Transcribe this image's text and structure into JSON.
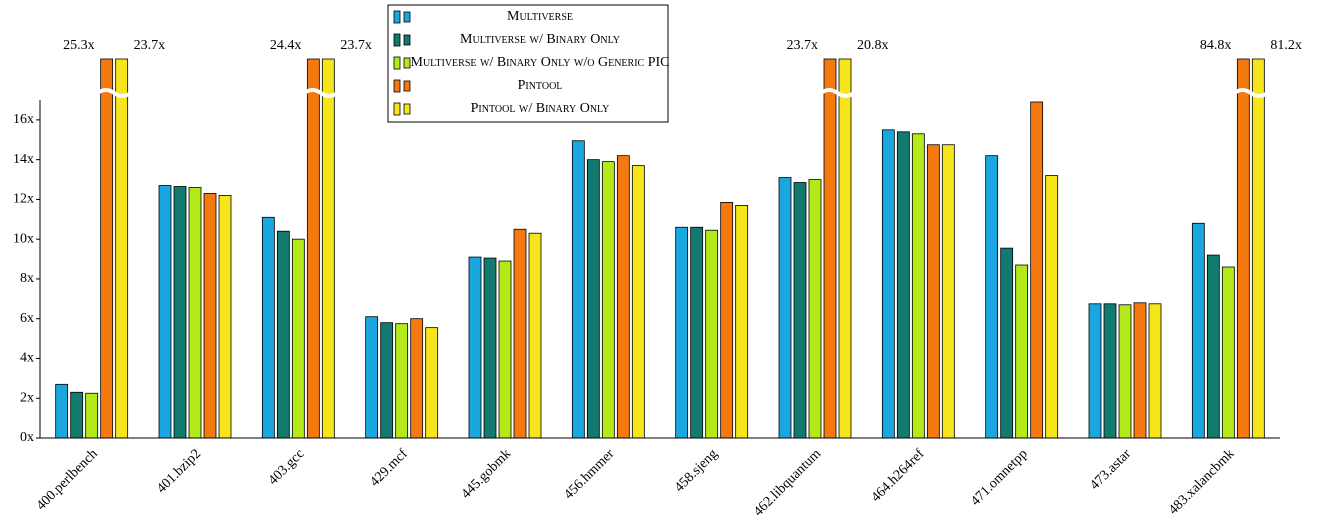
{
  "chart_data": {
    "type": "bar",
    "categories": [
      "400.perlbench",
      "401.bzip2",
      "403.gcc",
      "429.mcf",
      "445.gobmk",
      "456.hmmer",
      "458.sjeng",
      "462.libquantum",
      "464.h264ref",
      "471.omnetpp",
      "473.astar",
      "483.xalancbmk"
    ],
    "series": [
      {
        "name": "Multiverse",
        "color": "#1aa7e0",
        "values": [
          2.7,
          12.7,
          11.1,
          6.1,
          9.1,
          14.95,
          10.6,
          13.1,
          15.5,
          14.2,
          6.75,
          10.8
        ]
      },
      {
        "name": "Multiverse w/ Binary Only",
        "color": "#127a6e",
        "values": [
          2.3,
          12.65,
          10.4,
          5.8,
          9.05,
          14.0,
          10.6,
          12.85,
          15.4,
          9.55,
          6.75,
          9.2
        ]
      },
      {
        "name": "Multiverse w/ Binary Only w/o Generic PIC",
        "color": "#b4ea1a",
        "values": [
          2.25,
          12.6,
          10.0,
          5.75,
          8.9,
          13.9,
          10.45,
          13.0,
          15.3,
          8.7,
          6.7,
          8.6
        ]
      },
      {
        "name": "Pintool",
        "color": "#f47a10",
        "values": [
          25.3,
          12.3,
          24.4,
          6.0,
          10.5,
          14.2,
          11.85,
          23.7,
          14.75,
          16.9,
          6.8,
          84.8
        ],
        "value_labels": [
          "25.3x",
          null,
          "24.4x",
          null,
          null,
          null,
          null,
          "23.7x",
          null,
          null,
          null,
          "84.8x"
        ]
      },
      {
        "name": "Pintool w/ Binary Only",
        "color": "#f5e51a",
        "values": [
          23.7,
          12.2,
          23.7,
          5.55,
          10.3,
          13.7,
          11.7,
          20.8,
          14.75,
          13.2,
          6.75,
          81.2
        ],
        "value_labels": [
          "23.7x",
          null,
          "23.7x",
          null,
          null,
          null,
          null,
          "20.8x",
          null,
          null,
          null,
          "81.2x"
        ]
      }
    ],
    "ylim": [
      0,
      17
    ],
    "yticks": [
      {
        "value": 0,
        "label": "0x"
      },
      {
        "value": 2,
        "label": "2x"
      },
      {
        "value": 4,
        "label": "4x"
      },
      {
        "value": 6,
        "label": "6x"
      },
      {
        "value": 8,
        "label": "8x"
      },
      {
        "value": 10,
        "label": "10x"
      },
      {
        "value": 12,
        "label": "12x"
      },
      {
        "value": 14,
        "label": "14x"
      },
      {
        "value": 16,
        "label": "16x"
      }
    ],
    "legend": "top"
  }
}
